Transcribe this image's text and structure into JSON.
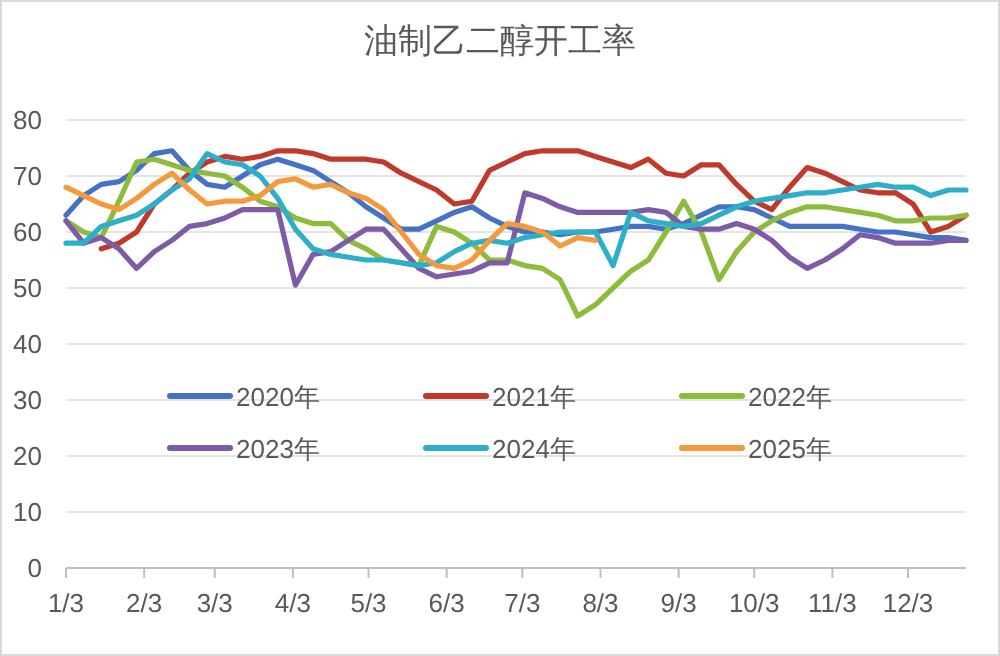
{
  "chart_data": {
    "type": "line",
    "title": "油制乙二醇开工率",
    "x": [
      "--01-03",
      "--01-10",
      "--01-17",
      "--01-24",
      "--01-31",
      "--02-07",
      "--02-14",
      "--02-21",
      "--02-28",
      "--03-07",
      "--03-14",
      "--03-21",
      "--03-28",
      "--04-04",
      "--04-11",
      "--04-18",
      "--04-25",
      "--05-02",
      "--05-09",
      "--05-16",
      "--05-23",
      "--05-30",
      "--06-06",
      "--06-13",
      "--06-20",
      "--06-27",
      "--07-04",
      "--07-11",
      "--07-18",
      "--07-25",
      "--08-01",
      "--08-08",
      "--08-15",
      "--08-22",
      "--08-29",
      "--09-05",
      "--09-12",
      "--09-19",
      "--09-26",
      "--10-03",
      "--10-10",
      "--10-17",
      "--10-24",
      "--10-31",
      "--11-07",
      "--11-14",
      "--11-21",
      "--11-28",
      "--12-05",
      "--12-12",
      "--12-19",
      "--12-26"
    ],
    "xlim": [
      "--01-03",
      "--12-26"
    ],
    "xticks": [
      {
        "value": "--01-03",
        "label": "1/3"
      },
      {
        "value": "--02-03",
        "label": "2/3"
      },
      {
        "value": "--03-03",
        "label": "3/3"
      },
      {
        "value": "--04-03",
        "label": "4/3"
      },
      {
        "value": "--05-03",
        "label": "5/3"
      },
      {
        "value": "--06-03",
        "label": "6/3"
      },
      {
        "value": "--07-03",
        "label": "7/3"
      },
      {
        "value": "--08-03",
        "label": "8/3"
      },
      {
        "value": "--09-03",
        "label": "9/3"
      },
      {
        "value": "--10-03",
        "label": "10/3"
      },
      {
        "value": "--11-03",
        "label": "11/3"
      },
      {
        "value": "--12-03",
        "label": "12/3"
      }
    ],
    "ylim": [
      0,
      80
    ],
    "yticks": [
      0,
      10,
      20,
      30,
      40,
      50,
      60,
      70,
      80
    ],
    "grid": "y",
    "legend": "bottom",
    "marker": "none",
    "line_style": "solid",
    "series": [
      {
        "name": "2020年",
        "color": "#4472c4",
        "values": [
          63,
          66.5,
          68.5,
          69,
          71,
          74,
          74.5,
          71,
          68.5,
          68,
          70,
          72,
          73,
          72,
          71,
          69,
          67,
          64.5,
          62.5,
          60.5,
          60.5,
          62,
          63.5,
          64.5,
          62.5,
          61,
          60,
          60,
          59.5,
          60,
          60,
          60.5,
          61,
          61,
          60.5,
          61.5,
          63,
          64.5,
          64.5,
          64,
          62.5,
          61,
          61,
          61,
          61,
          60.5,
          60,
          60,
          59.5,
          59,
          59,
          58.5
        ]
      },
      {
        "name": "2021年",
        "color": "#c0392b",
        "values": [
          null,
          null,
          57,
          58,
          60,
          65,
          67.5,
          70.5,
          72.5,
          73.5,
          73,
          73.5,
          74.5,
          74.5,
          74,
          73,
          73,
          73,
          72.5,
          70.5,
          69,
          67.5,
          65,
          65.5,
          71,
          72.5,
          74,
          74.5,
          74.5,
          74.5,
          73.5,
          72.5,
          71.5,
          73,
          70.5,
          70,
          72,
          72,
          68.5,
          65.5,
          64,
          68,
          71.5,
          70.5,
          69,
          67.5,
          67,
          67,
          65,
          60,
          61,
          63
        ]
      },
      {
        "name": "2022年",
        "color": "#8dbb3c",
        "values": [
          62,
          60,
          59,
          65.5,
          72.5,
          73,
          72,
          71,
          70.5,
          70,
          68,
          65.5,
          64.5,
          62.5,
          61.5,
          61.5,
          58.5,
          57,
          55,
          54.5,
          54,
          61,
          60,
          58,
          55,
          55,
          54,
          53.5,
          51.5,
          45,
          47,
          50,
          53,
          55,
          60,
          65.5,
          60,
          51.5,
          56.5,
          60,
          62,
          63.5,
          64.5,
          64.5,
          64,
          63.5,
          63,
          62,
          62,
          62.5,
          62.5,
          63
        ]
      },
      {
        "name": "2023年",
        "color": "#7d5ba6",
        "values": [
          62,
          58,
          59,
          57,
          53.5,
          56.5,
          58.5,
          61,
          61.5,
          62.5,
          64,
          64,
          64,
          50.5,
          56,
          56.5,
          58.5,
          60.5,
          60.5,
          57,
          53.5,
          52,
          52.5,
          53,
          54.5,
          54.5,
          67,
          66,
          64.5,
          63.5,
          63.5,
          63.5,
          63.5,
          64,
          63.5,
          61,
          60.5,
          60.5,
          61.5,
          60.5,
          58.5,
          55.5,
          53.5,
          55,
          57,
          59.5,
          59,
          58,
          58,
          58,
          58.5,
          58.5
        ]
      },
      {
        "name": "2024年",
        "color": "#2eafc9",
        "values": [
          58,
          58,
          61,
          62,
          63,
          65,
          67.5,
          69.5,
          74,
          72.5,
          72,
          70,
          66,
          60.5,
          57,
          56,
          55.5,
          55,
          55,
          54.5,
          54,
          54.5,
          56.5,
          58,
          58.5,
          58,
          59,
          59.5,
          60,
          60,
          60,
          54,
          63.5,
          62,
          61.5,
          61,
          61.5,
          63,
          64.5,
          65.5,
          66,
          66.5,
          67,
          67,
          67.5,
          68,
          68.5,
          68,
          68,
          66.5,
          67.5,
          67.5
        ]
      },
      {
        "name": "2025年",
        "color": "#f39a3c",
        "values": [
          68,
          66.5,
          65,
          64,
          66,
          68.5,
          70.5,
          67.5,
          65,
          65.5,
          65.5,
          66.5,
          69,
          69.5,
          68,
          68.5,
          67,
          66,
          64,
          60,
          56,
          54,
          53.5,
          55,
          58.5,
          61.5,
          61,
          60,
          57.5,
          59,
          58.5,
          null,
          null,
          null,
          null,
          null,
          null,
          null,
          null,
          null,
          null,
          null,
          null,
          null,
          null,
          null,
          null,
          null,
          null,
          null,
          null,
          null
        ]
      }
    ]
  }
}
